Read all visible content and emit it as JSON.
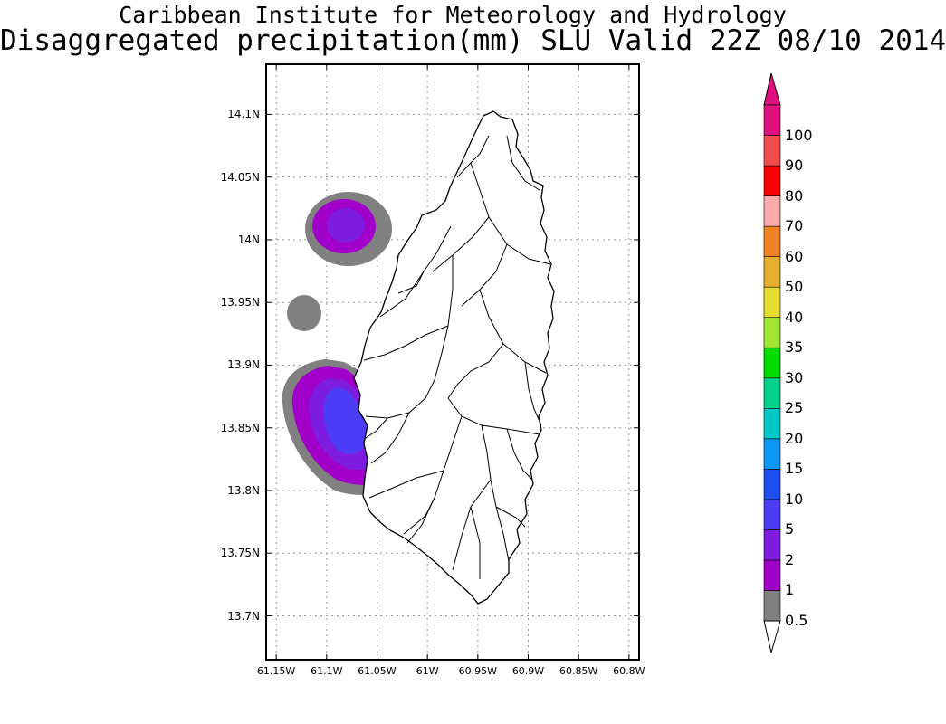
{
  "header": {
    "institute": "Caribbean Institute for Meteorology and Hydrology",
    "product": "Disaggregated precipitation(mm) SLU Valid 22Z 08/10 2014"
  },
  "chart_data": {
    "type": "contour-map",
    "title": "Disaggregated precipitation(mm) SLU Valid 22Z 08/10 2014",
    "region": "Saint Lucia",
    "lon_range": [
      -61.16,
      -60.79
    ],
    "lat_range": [
      13.665,
      14.14
    ],
    "lon_ticks": [
      -61.15,
      -61.1,
      -61.05,
      -61.0,
      -60.95,
      -60.9,
      -60.85,
      -60.8
    ],
    "lon_tick_labels": [
      "61.15W",
      "61.1W",
      "61.05W",
      "61W",
      "60.95W",
      "60.9W",
      "60.85W",
      "60.8W"
    ],
    "lat_ticks": [
      14.1,
      14.05,
      14.0,
      13.95,
      13.9,
      13.85,
      13.8,
      13.75,
      13.7
    ],
    "lat_tick_labels": [
      "14.1N",
      "14.05N",
      "14N",
      "13.95N",
      "13.9N",
      "13.85N",
      "13.8N",
      "13.75N",
      "13.7N"
    ],
    "grid": true,
    "colorbar": {
      "placement": "right",
      "labels": [
        "0.5",
        "1",
        "2",
        "5",
        "10",
        "15",
        "20",
        "25",
        "30",
        "35",
        "40",
        "50",
        "60",
        "70",
        "80",
        "90",
        "100"
      ],
      "colors": [
        "#808080",
        "#a000c8",
        "#7e1ce0",
        "#4c3cf5",
        "#1e4ef0",
        "#0e96f4",
        "#00c8c8",
        "#00d28c",
        "#00dc00",
        "#a0e632",
        "#e6dc32",
        "#e6af2d",
        "#f08228",
        "#faaaaa",
        "#fa0000",
        "#f04c4c",
        "#e0117f"
      ]
    },
    "precip_cells": [
      {
        "lon": -61.091,
        "lat": 14.013,
        "levels": [
          "0.5",
          "1",
          "2"
        ],
        "note": "offshore northwest"
      },
      {
        "lon": -61.117,
        "lat": 13.946,
        "levels": [
          "0.5"
        ]
      },
      {
        "lon": -61.09,
        "lat": 13.855,
        "levels": [
          "0.5",
          "1",
          "2",
          "5"
        ],
        "note": "west coast"
      }
    ]
  }
}
